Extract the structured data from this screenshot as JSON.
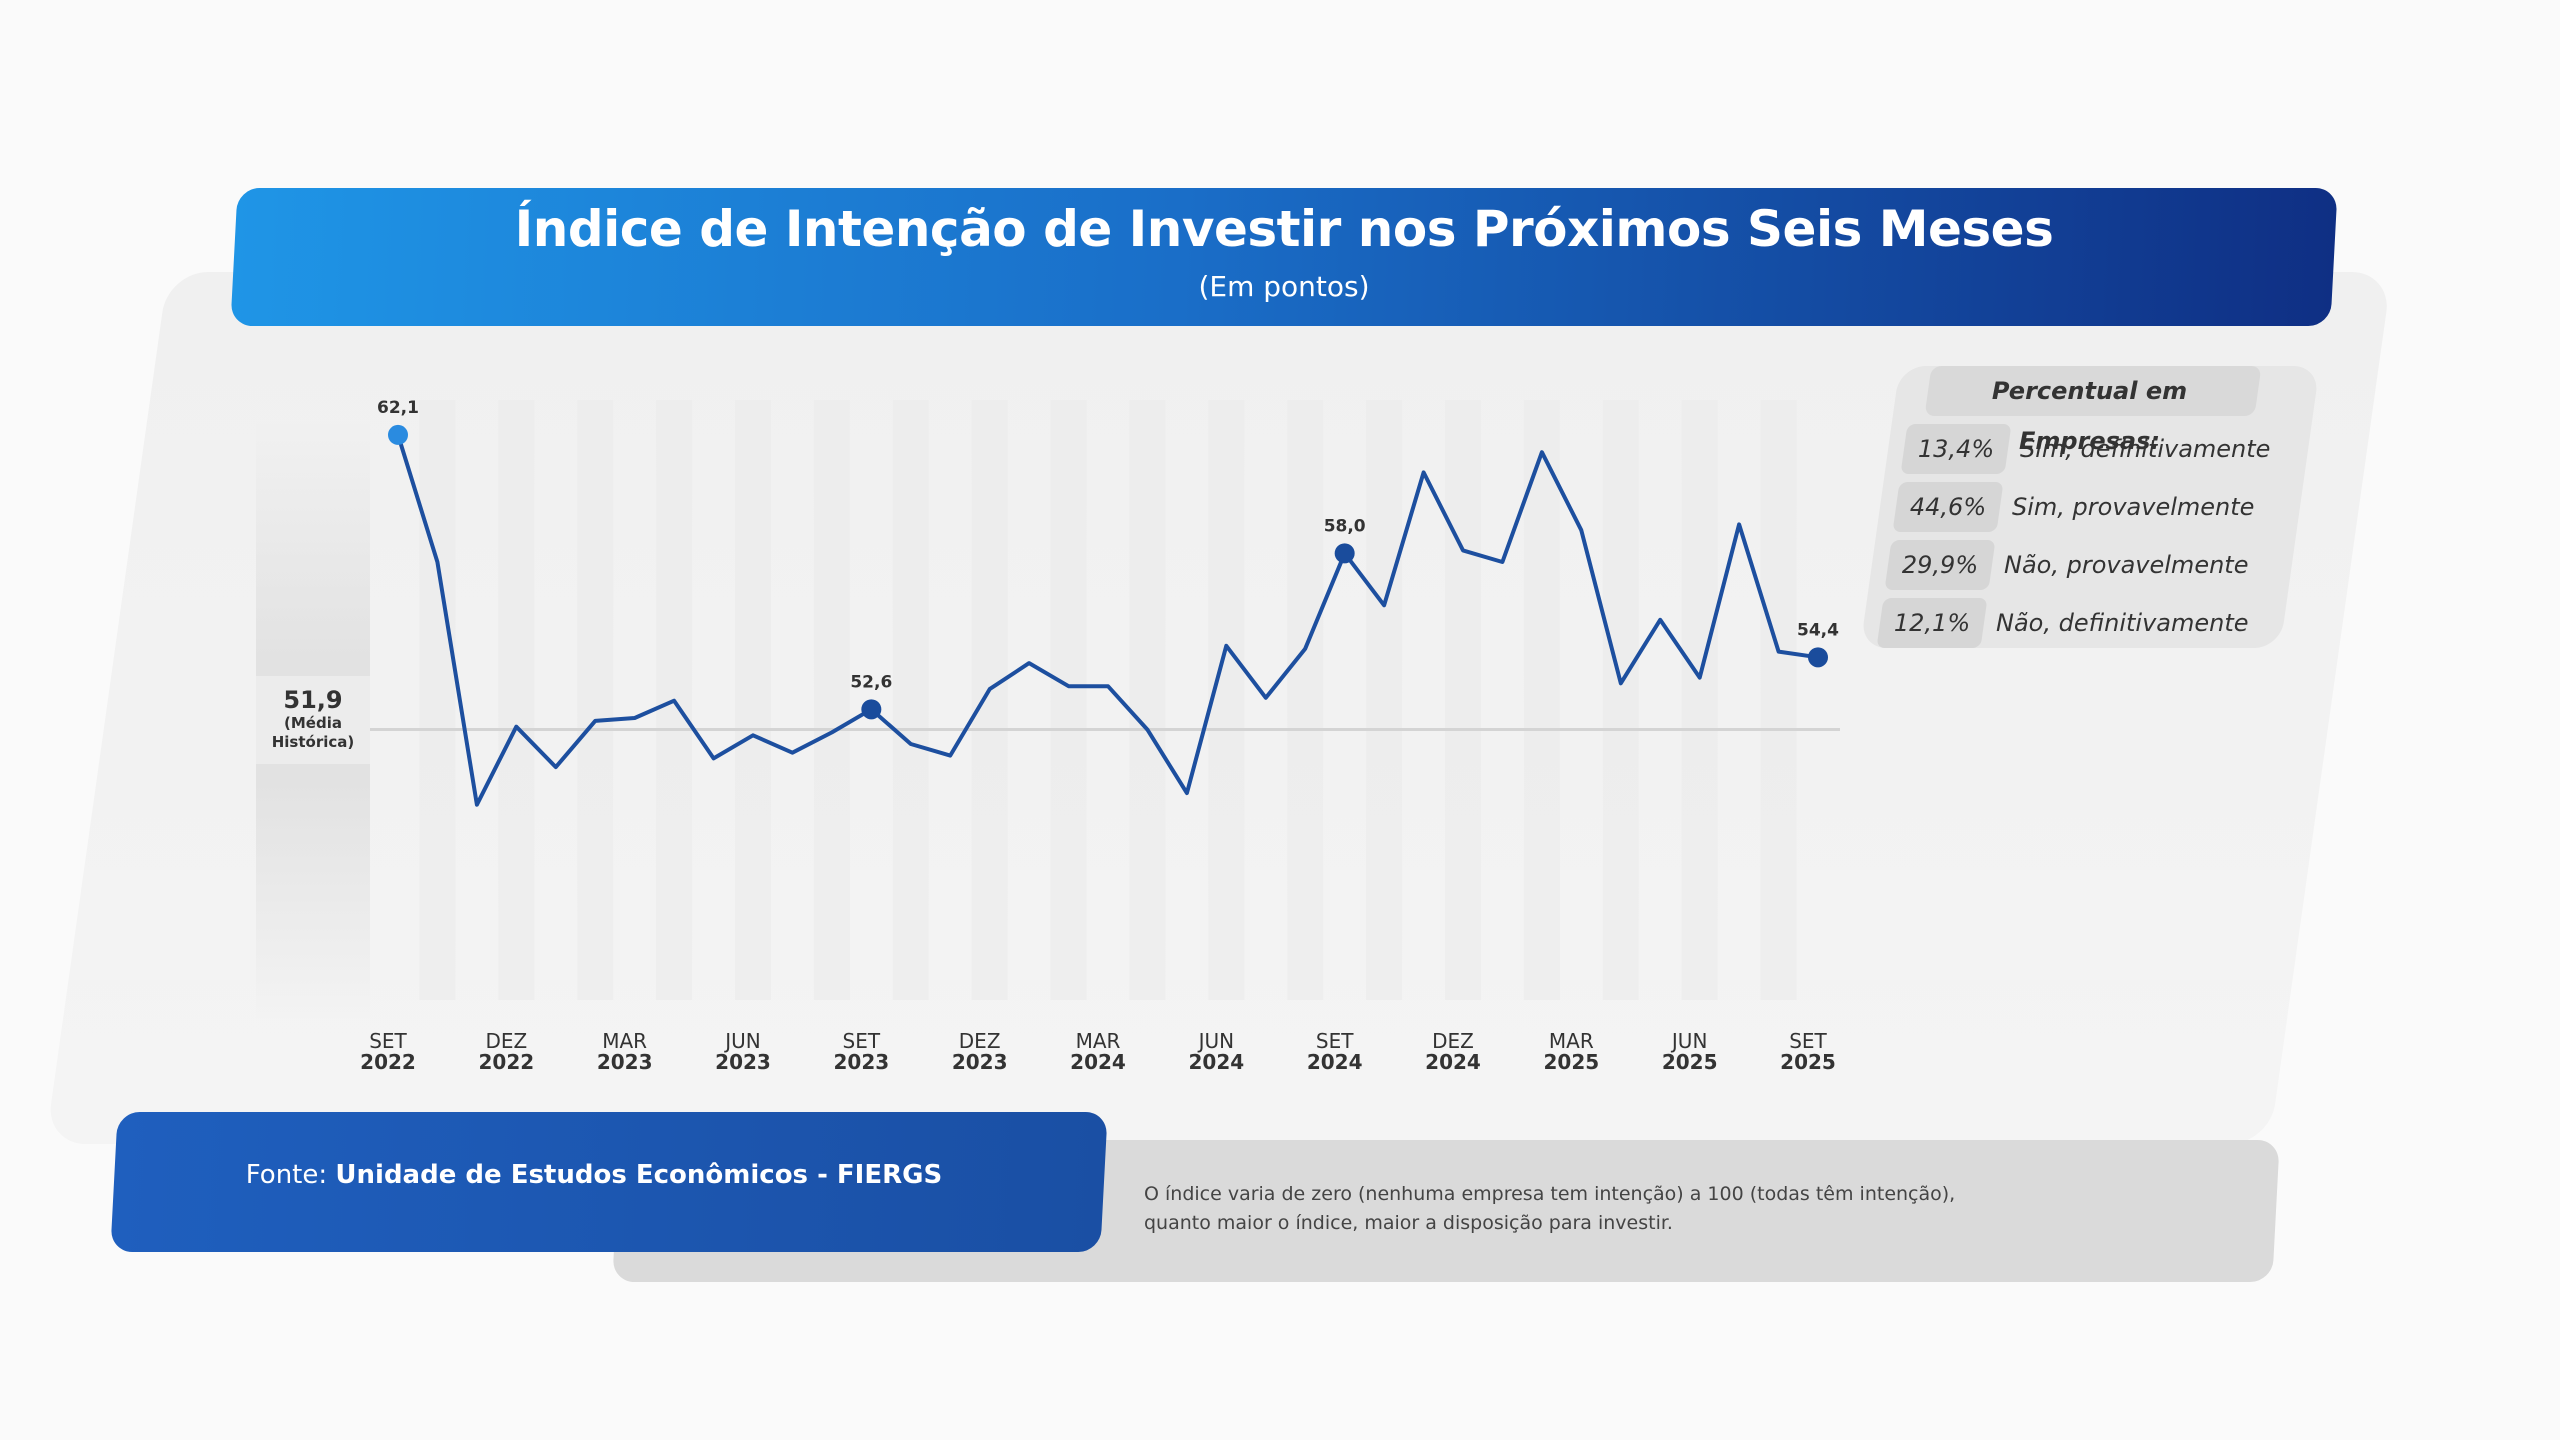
{
  "header": {
    "title": "Índice de Intenção de Investir nos Próximos Seis Meses",
    "subtitle": "(Em pontos)"
  },
  "average": {
    "value": "51,9",
    "label": "(Média Histórica)"
  },
  "legend": {
    "title": "Percentual em Empresas:",
    "items": [
      {
        "pct": "13,4%",
        "label": "Sim, definitivamente"
      },
      {
        "pct": "44,6%",
        "label": "Sim, provavelmente"
      },
      {
        "pct": "29,9%",
        "label": "Não, provavelmente"
      },
      {
        "pct": "12,1%",
        "label": "Não, definitivamente"
      }
    ]
  },
  "footer": {
    "source_prefix": "Fonte: ",
    "source_name": "Unidade de Estudos Econômicos - FIERGS",
    "note": "O índice varia de zero (nenhuma empresa tem intenção) a 100 (todas têm intenção), quanto maior o índice, maior a disposição para investir."
  },
  "colors": {
    "line": "#1d4f9f",
    "highlight_first": "#2a8be0",
    "highlight": "#1a4c9c",
    "average_line": "#d4d4d4"
  },
  "chart_data": {
    "type": "line",
    "x": [
      "SET 2022",
      "OUT 2022",
      "NOV 2022",
      "DEZ 2022",
      "JAN 2023",
      "FEV 2023",
      "MAR 2023",
      "ABR 2023",
      "MAI 2023",
      "JUN 2023",
      "JUL 2023",
      "AGO 2023",
      "SET 2023",
      "OUT 2023",
      "NOV 2023",
      "DEZ 2023",
      "JAN 2024",
      "FEV 2024",
      "MAR 2024",
      "ABR 2024",
      "MAI 2024",
      "JUN 2024",
      "JUL 2024",
      "AGO 2024",
      "SET 2024",
      "OUT 2024",
      "NOV 2024",
      "DEZ 2024",
      "JAN 2025",
      "FEV 2025",
      "MAR 2025",
      "ABR 2025",
      "MAI 2025",
      "JUN 2025",
      "JUL 2025",
      "AGO 2025",
      "SET 2025"
    ],
    "series": [
      {
        "values": [
          62.1,
          57.7,
          49.3,
          52.0,
          50.6,
          52.2,
          52.3,
          52.9,
          50.9,
          51.7,
          51.1,
          51.8,
          52.6,
          51.4,
          51.0,
          53.3,
          54.2,
          53.4,
          53.4,
          51.9,
          49.7,
          54.8,
          53.0,
          54.7,
          58.0,
          56.2,
          60.8,
          58.1,
          57.7,
          61.5,
          58.8,
          53.5,
          55.7,
          53.7,
          59.0,
          54.6,
          54.4
        ]
      }
    ],
    "xticks": [
      {
        "index": 0,
        "m": "SET",
        "y": "2022"
      },
      {
        "index": 3,
        "m": "DEZ",
        "y": "2022"
      },
      {
        "index": 6,
        "m": "MAR",
        "y": "2023"
      },
      {
        "index": 9,
        "m": "JUN",
        "y": "2023"
      },
      {
        "index": 12,
        "m": "SET",
        "y": "2023"
      },
      {
        "index": 15,
        "m": "DEZ",
        "y": "2023"
      },
      {
        "index": 18,
        "m": "MAR",
        "y": "2024"
      },
      {
        "index": 21,
        "m": "JUN",
        "y": "2024"
      },
      {
        "index": 24,
        "m": "SET",
        "y": "2024"
      },
      {
        "index": 27,
        "m": "DEZ",
        "y": "2024"
      },
      {
        "index": 30,
        "m": "MAR",
        "y": "2025"
      },
      {
        "index": 33,
        "m": "JUN",
        "y": "2025"
      },
      {
        "index": 36,
        "m": "SET",
        "y": "2025"
      }
    ],
    "data_labels": [
      {
        "index": 0,
        "text": "62,1"
      },
      {
        "index": 12,
        "text": "52,6"
      },
      {
        "index": 24,
        "text": "58,0"
      },
      {
        "index": 36,
        "text": "54,4"
      }
    ],
    "reference_line": 51.9,
    "ylim": [
      41.5,
      64
    ],
    "grid": false
  }
}
